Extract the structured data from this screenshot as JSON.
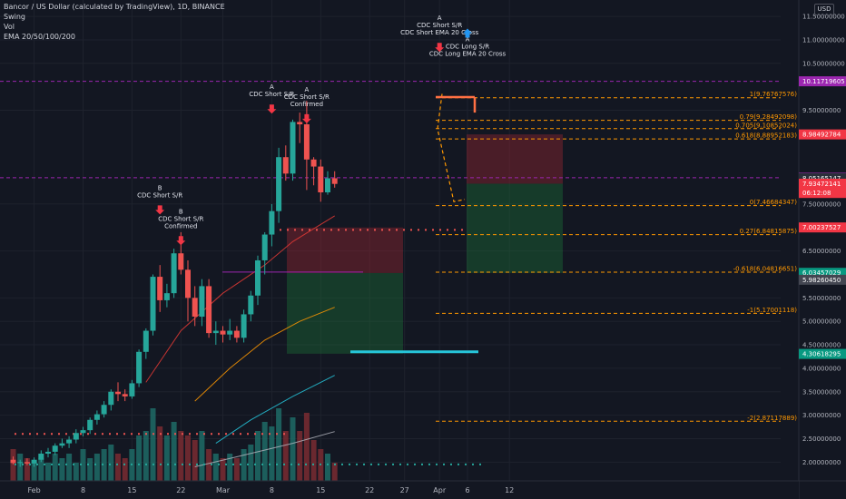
{
  "legend": {
    "title": "Bancor / US Dollar (calculated by TradingView), 1D, BINANCE",
    "line2": "Swing",
    "line3": "Vol",
    "line4": "EMA 20/50/100/200"
  },
  "currency_button": "USD",
  "colors": {
    "background": "#131722",
    "up": "#26a69a",
    "down": "#ef5350",
    "fib": "#ff9800",
    "purple": "#9c27b0",
    "cyan": "#00bcd4",
    "grid": "#1e222d"
  },
  "chart_data": {
    "type": "candlestick",
    "title": "Bancor / US Dollar (calculated by TradingView), 1D, BINANCE",
    "ylim": [
      1.6,
      11.85
    ],
    "y_ticks": [
      {
        "v": 11.5,
        "label": "11.50000000"
      },
      {
        "v": 11.0,
        "label": "11.00000000"
      },
      {
        "v": 10.5,
        "label": "10.50000000"
      },
      {
        "v": 9.5,
        "label": "9.50000000"
      },
      {
        "v": 7.5,
        "label": "7.50000000"
      },
      {
        "v": 6.5,
        "label": "6.50000000"
      },
      {
        "v": 5.5,
        "label": "5.50000000"
      },
      {
        "v": 5.0,
        "label": "5.00000000"
      },
      {
        "v": 4.5,
        "label": "4.50000000"
      },
      {
        "v": 4.0,
        "label": "4.00000000"
      },
      {
        "v": 3.5,
        "label": "3.50000000"
      },
      {
        "v": 3.0,
        "label": "3.00000000"
      },
      {
        "v": 2.5,
        "label": "2.50000000"
      },
      {
        "v": 2.0,
        "label": "2.00000000"
      }
    ],
    "x_ticks": [
      {
        "i": 3,
        "label": "Feb"
      },
      {
        "i": 10,
        "label": "8"
      },
      {
        "i": 17,
        "label": "15"
      },
      {
        "i": 24,
        "label": "22"
      },
      {
        "i": 30,
        "label": "Mar"
      },
      {
        "i": 37,
        "label": "8"
      },
      {
        "i": 44,
        "label": "15"
      },
      {
        "i": 51,
        "label": "22"
      },
      {
        "i": 56,
        "label": "27"
      },
      {
        "i": 61,
        "label": "Apr"
      },
      {
        "i": 65,
        "label": "6"
      },
      {
        "i": 71,
        "label": "12"
      }
    ],
    "candles": [
      [
        2.05,
        2.12,
        1.95,
        1.98
      ],
      [
        1.98,
        2.05,
        1.9,
        2.0
      ],
      [
        2.0,
        2.08,
        1.93,
        1.97
      ],
      [
        1.97,
        2.1,
        1.9,
        2.05
      ],
      [
        2.05,
        2.25,
        2.0,
        2.18
      ],
      [
        2.18,
        2.3,
        2.1,
        2.22
      ],
      [
        2.22,
        2.4,
        2.15,
        2.35
      ],
      [
        2.35,
        2.5,
        2.3,
        2.4
      ],
      [
        2.4,
        2.55,
        2.3,
        2.48
      ],
      [
        2.48,
        2.7,
        2.4,
        2.62
      ],
      [
        2.62,
        2.75,
        2.55,
        2.68
      ],
      [
        2.68,
        2.95,
        2.6,
        2.9
      ],
      [
        2.9,
        3.1,
        2.8,
        3.02
      ],
      [
        3.02,
        3.3,
        2.95,
        3.22
      ],
      [
        3.22,
        3.55,
        3.1,
        3.5
      ],
      [
        3.5,
        3.7,
        3.3,
        3.45
      ],
      [
        3.45,
        3.55,
        3.3,
        3.4
      ],
      [
        3.4,
        3.75,
        3.35,
        3.68
      ],
      [
        3.68,
        4.4,
        3.6,
        4.35
      ],
      [
        4.35,
        4.85,
        4.2,
        4.8
      ],
      [
        4.8,
        6.0,
        4.7,
        5.95
      ],
      [
        5.95,
        6.2,
        5.2,
        5.45
      ],
      [
        5.45,
        5.8,
        5.3,
        5.6
      ],
      [
        5.6,
        6.55,
        5.5,
        6.45
      ],
      [
        6.45,
        6.9,
        6.0,
        6.1
      ],
      [
        6.1,
        6.3,
        5.0,
        5.5
      ],
      [
        5.5,
        5.75,
        4.9,
        5.1
      ],
      [
        5.1,
        5.9,
        4.9,
        5.75
      ],
      [
        5.75,
        5.9,
        4.65,
        4.75
      ],
      [
        4.75,
        5.0,
        4.5,
        4.8
      ],
      [
        4.8,
        4.9,
        4.55,
        4.72
      ],
      [
        4.72,
        5.05,
        4.6,
        4.8
      ],
      [
        4.8,
        4.9,
        4.55,
        4.65
      ],
      [
        4.65,
        5.25,
        4.55,
        5.15
      ],
      [
        5.15,
        5.65,
        5.0,
        5.55
      ],
      [
        5.55,
        6.4,
        5.35,
        6.3
      ],
      [
        6.3,
        6.9,
        6.0,
        6.85
      ],
      [
        6.85,
        7.5,
        6.6,
        7.35
      ],
      [
        7.35,
        8.7,
        7.1,
        8.5
      ],
      [
        8.5,
        8.75,
        8.0,
        8.15
      ],
      [
        8.15,
        9.3,
        8.0,
        9.25
      ],
      [
        9.25,
        9.45,
        8.8,
        9.2
      ],
      [
        9.2,
        9.7,
        7.8,
        8.45
      ],
      [
        8.45,
        8.5,
        7.9,
        8.3
      ],
      [
        8.3,
        8.45,
        7.55,
        7.75
      ],
      [
        7.75,
        8.2,
        7.7,
        8.05
      ],
      [
        8.05,
        8.2,
        7.85,
        7.93
      ]
    ],
    "volume": [
      0.35,
      0.3,
      0.25,
      0.2,
      0.25,
      0.2,
      0.3,
      0.25,
      0.3,
      0.2,
      0.35,
      0.25,
      0.3,
      0.35,
      0.4,
      0.3,
      0.25,
      0.35,
      0.5,
      0.55,
      0.8,
      0.6,
      0.5,
      0.65,
      0.55,
      0.5,
      0.45,
      0.55,
      0.35,
      0.3,
      0.25,
      0.3,
      0.25,
      0.35,
      0.4,
      0.55,
      0.65,
      0.6,
      0.8,
      0.55,
      0.7,
      0.55,
      0.75,
      0.45,
      0.35,
      0.3,
      0.2
    ],
    "ema20": [
      [
        19,
        3.7
      ],
      [
        24,
        4.8
      ],
      [
        30,
        5.6
      ],
      [
        36,
        6.2
      ],
      [
        40,
        6.7
      ],
      [
        46,
        7.25
      ]
    ],
    "ema50": [
      [
        26,
        3.3
      ],
      [
        31,
        4.0
      ],
      [
        36,
        4.6
      ],
      [
        41,
        5.0
      ],
      [
        46,
        5.3
      ]
    ],
    "ema100": [
      [
        29,
        2.4
      ],
      [
        34,
        2.9
      ],
      [
        40,
        3.4
      ],
      [
        46,
        3.85
      ]
    ],
    "ema200": [
      [
        26,
        1.9
      ],
      [
        33,
        2.15
      ],
      [
        40,
        2.4
      ],
      [
        46,
        2.65
      ]
    ],
    "fib_levels": [
      {
        "v": 9.767,
        "label": "1(9.76767576)"
      },
      {
        "v": 9.285,
        "label": "0.79(9.28492098)"
      },
      {
        "v": 9.108,
        "label": "0.705(9.10852024)"
      },
      {
        "v": 8.889,
        "label": "0.618(8.88952183)"
      },
      {
        "v": 7.467,
        "label": "0(7.46684347)"
      },
      {
        "v": 6.848,
        "label": "0.27(6.84815875)"
      },
      {
        "v": 6.048,
        "label": "-0.618(6.04816651)"
      },
      {
        "v": 5.17,
        "label": "-1(5.17001118)"
      },
      {
        "v": 2.871,
        "label": "-2(2.87117889)"
      }
    ],
    "price_labels": [
      {
        "v": 10.117,
        "label": "10.11719605",
        "color": "#9c27b0"
      },
      {
        "v": 8.985,
        "label": "8.98492784",
        "color": "#f23645"
      },
      {
        "v": 8.063,
        "label": "8.06281649",
        "color": "#9c27b0"
      },
      {
        "v": 8.052,
        "label": "8.05165147",
        "color": "#2a2e39"
      },
      {
        "v": 7.934,
        "label": "7.93472141",
        "color": "#f23645"
      },
      {
        "v": 7.93,
        "label": "06:12:08",
        "color": "#f23645"
      },
      {
        "v": 7.002,
        "label": "7.00237527",
        "color": "#f23645"
      },
      {
        "v": 6.034,
        "label": "6.03457029",
        "color": "#089981"
      },
      {
        "v": 5.983,
        "label": "5.98260450",
        "color": "#434651"
      },
      {
        "v": 4.306,
        "label": "4.30618295",
        "color": "#089981"
      }
    ],
    "signals": [
      {
        "i": 21,
        "v": 7.8,
        "dir": "down",
        "lines": [
          "B",
          "CDC Short S/R"
        ]
      },
      {
        "i": 24,
        "v": 7.3,
        "dir": "down",
        "lines": [
          "B",
          "CDC Short S/R",
          "Confirmed"
        ]
      },
      {
        "i": 37,
        "v": 9.95,
        "dir": "down",
        "lines": [
          "A",
          "CDC Short S/R"
        ]
      },
      {
        "i": 42,
        "v": 9.9,
        "dir": "down",
        "lines": [
          "A",
          "CDC Short S/R",
          "Confirmed"
        ]
      },
      {
        "i": 61,
        "v": 11.42,
        "dir": "down",
        "lines": [
          "A",
          "CDC Short S/R",
          "CDC Short EMA 20 Cross"
        ]
      },
      {
        "i": 65,
        "v": 10.97,
        "dir": "up",
        "lines": [
          "A",
          "CDC Long S/R",
          "CDC Long EMA 20 Cross"
        ]
      }
    ]
  }
}
